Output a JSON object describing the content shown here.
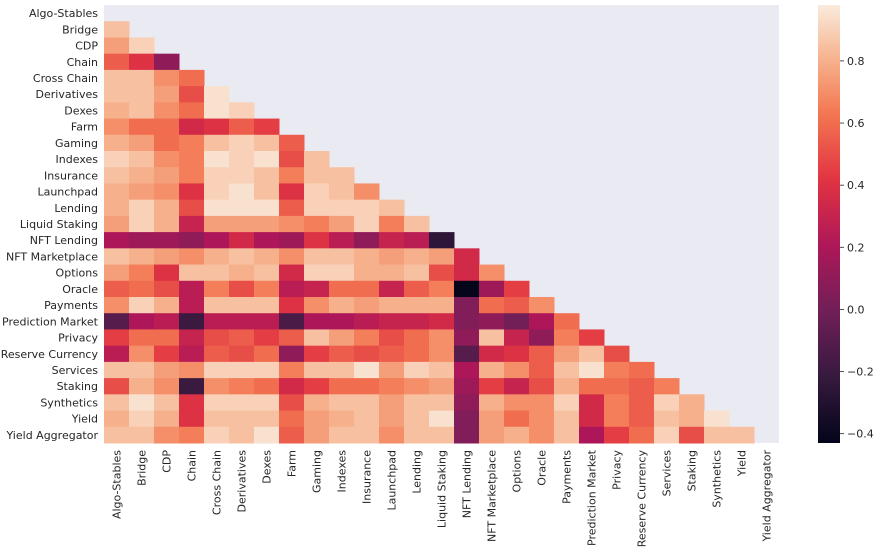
{
  "chart_data": {
    "type": "heatmap",
    "title": "",
    "xlabel": "",
    "ylabel": "",
    "categories": [
      "Algo-Stables",
      "Bridge",
      "CDP",
      "Chain",
      "Cross Chain",
      "Derivatives",
      "Dexes",
      "Farm",
      "Gaming",
      "Indexes",
      "Insurance",
      "Launchpad",
      "Lending",
      "Liquid Staking",
      "NFT Lending",
      "NFT Marketplace",
      "Options",
      "Oracle",
      "Payments",
      "Prediction Market",
      "Privacy",
      "Reserve Currency",
      "Services",
      "Staking",
      "Synthetics",
      "Yield",
      "Yield Aggregator"
    ],
    "mask": "upper-triangle-and-diagonal",
    "values": [
      [],
      [
        0.85
      ],
      [
        0.75,
        0.9
      ],
      [
        0.55,
        0.4,
        0.1
      ],
      [
        0.85,
        0.85,
        0.7,
        0.6
      ],
      [
        0.85,
        0.85,
        0.75,
        0.5,
        0.95
      ],
      [
        0.8,
        0.85,
        0.7,
        0.6,
        0.95,
        0.9
      ],
      [
        0.7,
        0.6,
        0.6,
        0.35,
        0.4,
        0.55,
        0.45
      ],
      [
        0.8,
        0.75,
        0.6,
        0.65,
        0.85,
        0.9,
        0.85,
        0.55
      ],
      [
        0.9,
        0.85,
        0.7,
        0.65,
        0.95,
        0.9,
        0.95,
        0.5,
        0.85
      ],
      [
        0.85,
        0.8,
        0.75,
        0.65,
        0.9,
        0.9,
        0.85,
        0.65,
        0.85,
        0.85
      ],
      [
        0.8,
        0.75,
        0.7,
        0.4,
        0.9,
        0.95,
        0.85,
        0.4,
        0.9,
        0.85,
        0.7
      ],
      [
        0.8,
        0.9,
        0.8,
        0.5,
        0.95,
        0.95,
        0.95,
        0.55,
        0.9,
        0.9,
        0.9,
        0.85
      ],
      [
        0.75,
        0.9,
        0.8,
        0.3,
        0.75,
        0.75,
        0.75,
        0.7,
        0.65,
        0.75,
        0.9,
        0.65,
        0.85
      ],
      [
        0.2,
        0.15,
        0.15,
        0.1,
        0.2,
        0.35,
        0.2,
        0.15,
        0.4,
        0.25,
        0.1,
        0.3,
        0.25,
        -0.25
      ],
      [
        0.85,
        0.8,
        0.75,
        0.7,
        0.8,
        0.85,
        0.8,
        0.7,
        0.85,
        0.85,
        0.8,
        0.75,
        0.8,
        0.75,
        0.35
      ],
      [
        0.75,
        0.65,
        0.4,
        0.85,
        0.85,
        0.8,
        0.85,
        0.35,
        0.9,
        0.9,
        0.8,
        0.8,
        0.85,
        0.5,
        0.35,
        0.7
      ],
      [
        0.55,
        0.6,
        0.5,
        0.25,
        0.65,
        0.5,
        0.65,
        0.25,
        0.3,
        0.6,
        0.6,
        0.3,
        0.55,
        0.65,
        -0.42,
        0.15,
        0.45
      ],
      [
        0.7,
        0.9,
        0.8,
        0.25,
        0.85,
        0.85,
        0.85,
        0.4,
        0.7,
        0.8,
        0.75,
        0.8,
        0.8,
        0.8,
        0.05,
        0.6,
        0.55,
        0.7
      ],
      [
        -0.1,
        0.2,
        0.25,
        -0.2,
        0.25,
        0.25,
        0.25,
        -0.15,
        0.2,
        0.2,
        0.25,
        0.3,
        0.3,
        0.35,
        0.05,
        0.1,
        0.0,
        0.2,
        0.6
      ],
      [
        0.45,
        0.6,
        0.6,
        0.3,
        0.5,
        0.55,
        0.45,
        0.55,
        0.85,
        0.75,
        0.65,
        0.5,
        0.6,
        0.7,
        0.1,
        0.85,
        0.3,
        0.1,
        0.65,
        0.45
      ],
      [
        0.25,
        0.7,
        0.45,
        0.25,
        0.55,
        0.5,
        0.6,
        0.1,
        0.45,
        0.55,
        0.5,
        0.55,
        0.6,
        0.7,
        -0.1,
        0.35,
        0.4,
        0.55,
        0.75,
        0.85,
        0.5
      ],
      [
        0.85,
        0.85,
        0.75,
        0.7,
        0.9,
        0.9,
        0.9,
        0.65,
        0.85,
        0.85,
        0.95,
        0.75,
        0.9,
        0.85,
        0.2,
        0.8,
        0.7,
        0.55,
        0.85,
        0.95,
        0.65,
        0.6
      ],
      [
        0.5,
        0.8,
        0.7,
        -0.2,
        0.7,
        0.65,
        0.6,
        0.35,
        0.45,
        0.6,
        0.6,
        0.65,
        0.7,
        0.75,
        0.15,
        0.45,
        0.3,
        0.5,
        0.8,
        0.6,
        0.6,
        0.55,
        0.65
      ],
      [
        0.85,
        0.95,
        0.85,
        0.4,
        0.9,
        0.9,
        0.9,
        0.5,
        0.8,
        0.85,
        0.85,
        0.75,
        0.85,
        0.85,
        0.1,
        0.8,
        0.7,
        0.7,
        0.9,
        0.35,
        0.65,
        0.55,
        0.9,
        0.8
      ],
      [
        0.8,
        0.9,
        0.8,
        0.4,
        0.85,
        0.85,
        0.85,
        0.6,
        0.75,
        0.8,
        0.85,
        0.75,
        0.85,
        0.95,
        0.05,
        0.75,
        0.6,
        0.7,
        0.85,
        0.35,
        0.65,
        0.55,
        0.85,
        0.8,
        0.95
      ],
      [
        0.85,
        0.85,
        0.7,
        0.65,
        0.9,
        0.85,
        0.95,
        0.55,
        0.75,
        0.85,
        0.85,
        0.7,
        0.85,
        0.85,
        0.05,
        0.75,
        0.8,
        0.7,
        0.85,
        0.2,
        0.45,
        0.6,
        0.9,
        0.5,
        0.85,
        0.85
      ]
    ],
    "colorbar": {
      "min": -0.43,
      "max": 0.98,
      "ticks": [
        0.8,
        0.6,
        0.4,
        0.2,
        0.0,
        -0.2,
        -0.4
      ],
      "tick_labels": [
        "0.8",
        "0.6",
        "0.4",
        "0.2",
        "0.0",
        "−0.2",
        "−0.4"
      ]
    },
    "background_color": "#eaeaf2"
  }
}
